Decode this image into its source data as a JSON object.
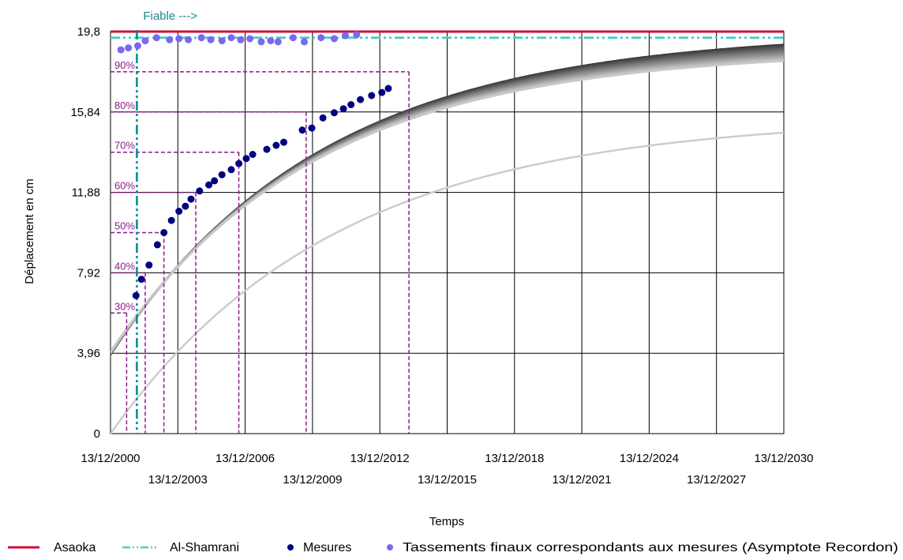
{
  "chart_data": {
    "type": "line",
    "xlabel": "Temps",
    "ylabel": "Déplacement en cm",
    "xlim": [
      "2000-12-13",
      "2030-12-13"
    ],
    "ylim": [
      0,
      19.8
    ],
    "x_ticks": [
      "13/12/2000",
      "13/12/2003",
      "13/12/2006",
      "13/12/2009",
      "13/12/2012",
      "13/12/2015",
      "13/12/2018",
      "13/12/2021",
      "13/12/2024",
      "13/12/2027",
      "13/12/2030"
    ],
    "y_ticks": [
      {
        "value": 0,
        "label": "0"
      },
      {
        "value": 3.96,
        "label": "3,96"
      },
      {
        "value": 7.92,
        "label": "7,92"
      },
      {
        "value": 11.88,
        "label": "11,88"
      },
      {
        "value": 15.84,
        "label": "15,84"
      },
      {
        "value": 19.8,
        "label": "19,8"
      }
    ],
    "grid": true,
    "legend_position": "bottom",
    "legend": [
      "Asaoka",
      "Al-Shamrani",
      "Mesures",
      "Tassements finaux correspondants aux mesures (Asymptote Recordon)"
    ],
    "annotations": [
      {
        "text": "Fiable --->",
        "x": "2002-02-15",
        "color": "#1a8a8a"
      }
    ],
    "colors": {
      "asaoka": "#d0103a",
      "al_shamrani": "#4ecdc4",
      "fiable_line": "#008b8b",
      "mesures": "#000080",
      "recordon": "#7b68ee",
      "percent_guides": "#8b1a8b",
      "light_curve": "#cccccc"
    },
    "series": [
      {
        "name": "Asaoka",
        "style": "solid",
        "y_constant": 19.8
      },
      {
        "name": "Al-Shamrani",
        "style": "dash-dot-dot",
        "y_constant": 19.5
      },
      {
        "name": "Mesures",
        "style": "markers",
        "points": [
          {
            "x": "2002-02-01",
            "y": 6.8
          },
          {
            "x": "2002-05-01",
            "y": 7.6
          },
          {
            "x": "2002-09-01",
            "y": 8.3
          },
          {
            "x": "2003-01-15",
            "y": 9.3
          },
          {
            "x": "2003-05-01",
            "y": 9.9
          },
          {
            "x": "2003-09-01",
            "y": 10.5
          },
          {
            "x": "2004-01-01",
            "y": 10.95
          },
          {
            "x": "2004-04-15",
            "y": 11.2
          },
          {
            "x": "2004-07-15",
            "y": 11.55
          },
          {
            "x": "2004-12-01",
            "y": 11.95
          },
          {
            "x": "2005-05-01",
            "y": 12.25
          },
          {
            "x": "2005-08-01",
            "y": 12.45
          },
          {
            "x": "2005-12-01",
            "y": 12.75
          },
          {
            "x": "2006-05-01",
            "y": 13.0
          },
          {
            "x": "2006-09-01",
            "y": 13.3
          },
          {
            "x": "2007-01-01",
            "y": 13.55
          },
          {
            "x": "2007-04-15",
            "y": 13.75
          },
          {
            "x": "2007-12-01",
            "y": 14.0
          },
          {
            "x": "2008-05-01",
            "y": 14.2
          },
          {
            "x": "2008-09-01",
            "y": 14.35
          },
          {
            "x": "2009-07-01",
            "y": 14.95
          },
          {
            "x": "2009-12-01",
            "y": 15.05
          },
          {
            "x": "2010-06-01",
            "y": 15.55
          },
          {
            "x": "2010-12-01",
            "y": 15.8
          },
          {
            "x": "2011-05-01",
            "y": 16.0
          },
          {
            "x": "2011-09-01",
            "y": 16.2
          },
          {
            "x": "2012-02-01",
            "y": 16.45
          },
          {
            "x": "2012-08-01",
            "y": 16.65
          },
          {
            "x": "2013-01-15",
            "y": 16.8
          },
          {
            "x": "2013-05-01",
            "y": 17.0
          }
        ]
      },
      {
        "name": "Tassements finaux correspondants aux mesures (Asymptote Recordon)",
        "style": "markers",
        "points": [
          {
            "x": "2001-06-01",
            "y": 18.9
          },
          {
            "x": "2001-10-01",
            "y": 19.0
          },
          {
            "x": "2002-03-01",
            "y": 19.1
          },
          {
            "x": "2002-07-01",
            "y": 19.35
          },
          {
            "x": "2003-01-01",
            "y": 19.5
          },
          {
            "x": "2003-08-01",
            "y": 19.4
          },
          {
            "x": "2004-01-01",
            "y": 19.45
          },
          {
            "x": "2004-06-01",
            "y": 19.4
          },
          {
            "x": "2005-01-01",
            "y": 19.5
          },
          {
            "x": "2005-06-01",
            "y": 19.4
          },
          {
            "x": "2005-12-01",
            "y": 19.35
          },
          {
            "x": "2006-05-01",
            "y": 19.5
          },
          {
            "x": "2006-10-01",
            "y": 19.4
          },
          {
            "x": "2007-03-01",
            "y": 19.45
          },
          {
            "x": "2007-09-01",
            "y": 19.3
          },
          {
            "x": "2008-02-01",
            "y": 19.35
          },
          {
            "x": "2008-06-01",
            "y": 19.3
          },
          {
            "x": "2009-02-01",
            "y": 19.5
          },
          {
            "x": "2009-08-01",
            "y": 19.3
          },
          {
            "x": "2010-05-01",
            "y": 19.5
          },
          {
            "x": "2010-12-01",
            "y": 19.45
          },
          {
            "x": "2011-06-01",
            "y": 19.6
          },
          {
            "x": "2011-12-01",
            "y": 19.65
          }
        ]
      }
    ],
    "fitted_curves": {
      "y_start": 3.9,
      "y_asymptote": 19.8,
      "time_constant_years": 9.4,
      "count": 12,
      "light_curve": {
        "y_start": 0,
        "y_asymptote": 15.6,
        "time_constant_years": 10
      }
    },
    "percent_guides": [
      {
        "label": "30%",
        "y": 5.94,
        "x": "2001-09-01"
      },
      {
        "label": "40%",
        "y": 7.92,
        "x": "2002-07-01"
      },
      {
        "label": "50%",
        "y": 9.9,
        "x": "2003-05-01"
      },
      {
        "label": "60%",
        "y": 11.88,
        "x": "2004-10-01"
      },
      {
        "label": "70%",
        "y": 13.86,
        "x": "2006-09-01"
      },
      {
        "label": "80%",
        "y": 15.84,
        "x": "2009-09-01"
      },
      {
        "label": "90%",
        "y": 17.82,
        "x": "2014-04-01"
      }
    ]
  }
}
